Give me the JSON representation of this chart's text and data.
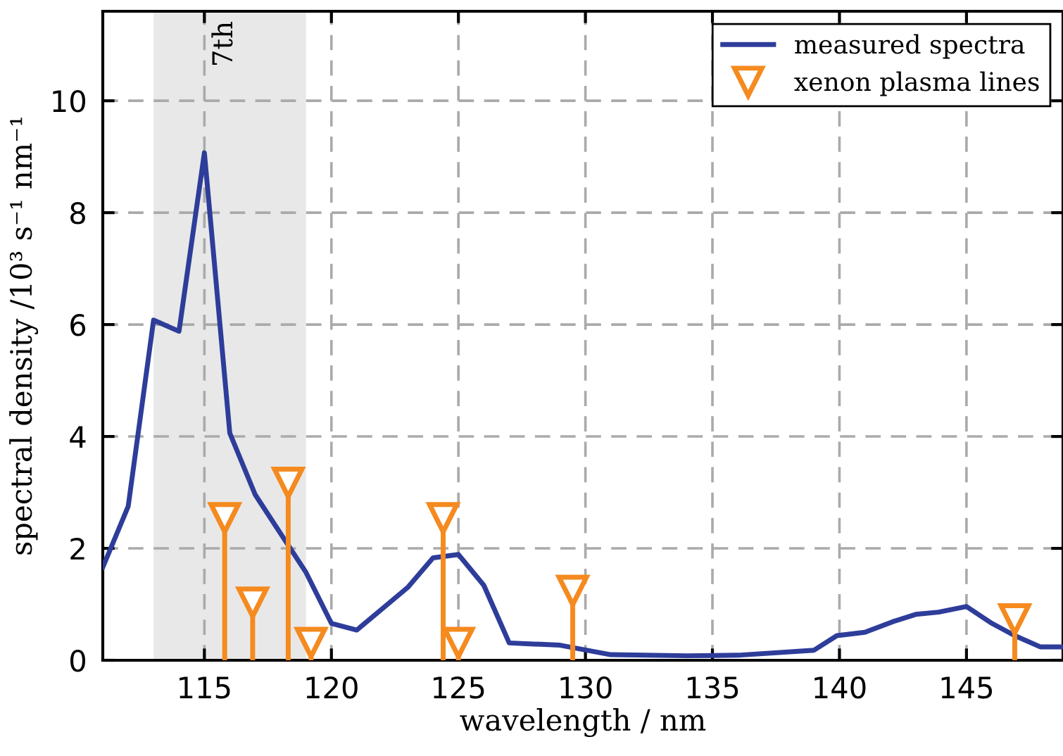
{
  "chart_data": {
    "type": "line",
    "xlabel": "wavelength / nm",
    "ylabel": "spectral density /10³ s⁻¹ nm⁻¹",
    "xlim": [
      111,
      148.8
    ],
    "ylim": [
      0,
      11.6
    ],
    "xticks": [
      115,
      120,
      125,
      130,
      135,
      140,
      145
    ],
    "yticks": [
      0,
      2,
      4,
      6,
      8,
      10
    ],
    "grid": true,
    "legend": "top right",
    "bands": [
      {
        "axis": "x",
        "from": 113,
        "to": 119,
        "label": "7th",
        "color": "#e8e8e8"
      }
    ],
    "series": [
      {
        "name": "measured spectra",
        "color": "#2e3d9a",
        "marker": "none",
        "x": [
          111,
          112,
          113,
          114,
          115,
          116,
          117,
          119,
          120,
          121,
          122,
          123,
          124,
          125,
          126,
          127,
          129,
          131,
          134,
          136,
          139,
          139.9,
          141,
          142.1,
          143,
          143.9,
          145,
          146,
          146.9,
          147.9,
          148.8
        ],
        "values": [
          1.66,
          2.75,
          6.08,
          5.88,
          9.07,
          4.06,
          2.96,
          1.57,
          0.66,
          0.54,
          0.92,
          1.3,
          1.83,
          1.89,
          1.34,
          0.31,
          0.27,
          0.1,
          0.08,
          0.09,
          0.18,
          0.44,
          0.5,
          0.69,
          0.82,
          0.86,
          0.96,
          0.66,
          0.44,
          0.24,
          0.24
        ]
      },
      {
        "name": "xenon plasma lines",
        "type": "lollipop",
        "color": "#f58a1f",
        "marker": "triangle",
        "x": [
          115.8,
          116.9,
          118.3,
          119.2,
          124.4,
          125.0,
          129.5,
          146.9
        ],
        "values": [
          2.54,
          1.03,
          3.17,
          0.31,
          2.54,
          0.31,
          1.24,
          0.73
        ]
      }
    ]
  }
}
